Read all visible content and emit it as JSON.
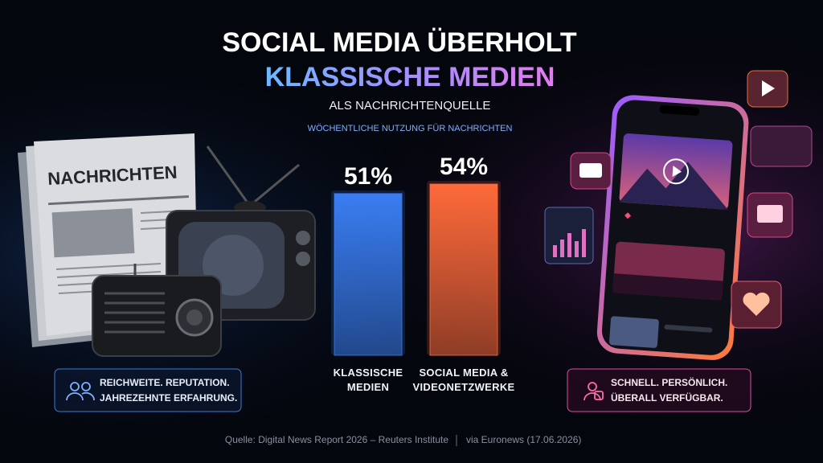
{
  "chart_data": {
    "type": "bar",
    "title": "SOCIAL MEDIA ÜBERHOLT",
    "title_highlight": "KLASSISCHE MEDIEN",
    "subtitle": "ALS NACHRICHTENQUELLE",
    "caption": "WÖCHENTLICHE NUTZUNG FÜR NACHRICHTEN",
    "categories": [
      "KLASSISCHE MEDIEN",
      "SOCIAL MEDIA & VIDEONETZWERKE"
    ],
    "values": [
      51,
      54
    ],
    "value_labels": [
      "51%",
      "54%"
    ],
    "colors": [
      "#3a7df2",
      "#ff6a3a"
    ]
  },
  "illustration": {
    "newspaper_headline": "NACHRICHTEN"
  },
  "left_box": {
    "lines": [
      "REICHWEITE. REPUTATION.",
      "JAHREZEHNTE ERFAHRUNG."
    ]
  },
  "right_box": {
    "lines": [
      "SCHNELL. PERSÖNLICH.",
      "ÜBERALL VERFÜGBAR."
    ]
  },
  "source": {
    "text": "Quelle: Digital News Report 2026 – Reuters Institute",
    "via": "via Euronews (17.06.2026)"
  }
}
